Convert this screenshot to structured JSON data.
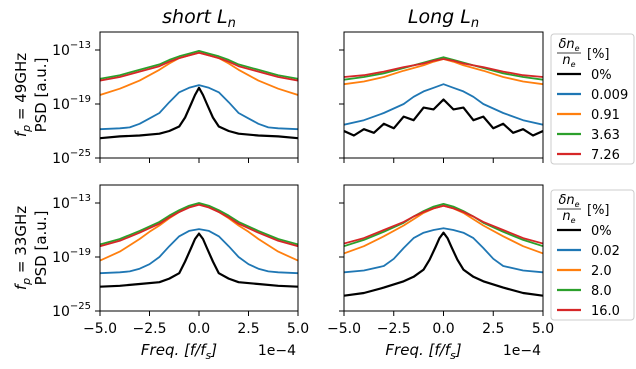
{
  "chart_data": [
    {
      "type": "line",
      "panel": "top-left",
      "title": "short L_n",
      "ylabel_line1": "f_p = 49GHz",
      "ylabel_line2": "PSD [a.u.]",
      "xlabel": "",
      "xlim": [
        -5.0,
        5.0
      ],
      "ylim": [
        -25,
        -11
      ],
      "y_scale": "log",
      "series": [
        {
          "name": "0%",
          "color": "#000000",
          "x": [
            -5.0,
            -4.0,
            -3.0,
            -2.0,
            -1.5,
            -1.0,
            -0.7,
            -0.4,
            -0.2,
            0.0,
            0.2,
            0.4,
            0.7,
            1.0,
            1.5,
            2.0,
            3.0,
            4.0,
            5.0
          ],
          "y": [
            -22.8,
            -22.6,
            -22.5,
            -22.3,
            -22.0,
            -21.5,
            -20.5,
            -19.0,
            -18.0,
            -17.2,
            -18.0,
            -19.0,
            -20.5,
            -21.5,
            -22.0,
            -22.3,
            -22.5,
            -22.6,
            -22.8
          ]
        },
        {
          "name": "0.009",
          "color": "#1f77b4",
          "x": [
            -5.0,
            -4.0,
            -3.5,
            -3.0,
            -2.5,
            -2.0,
            -1.5,
            -1.0,
            -0.5,
            0.0,
            0.5,
            1.0,
            1.5,
            2.0,
            2.5,
            3.0,
            3.5,
            4.0,
            5.0
          ],
          "y": [
            -21.8,
            -21.7,
            -21.6,
            -21.2,
            -20.6,
            -20.0,
            -18.8,
            -17.7,
            -17.2,
            -16.9,
            -17.2,
            -17.7,
            -18.8,
            -20.0,
            -20.6,
            -21.2,
            -21.6,
            -21.7,
            -21.8
          ]
        },
        {
          "name": "0.91",
          "color": "#ff7f0e",
          "x": [
            -5.0,
            -4.0,
            -3.0,
            -2.5,
            -2.0,
            -1.5,
            -1.0,
            -0.5,
            0.0,
            0.5,
            1.0,
            1.5,
            2.0,
            2.5,
            3.0,
            4.0,
            5.0
          ],
          "y": [
            -18.0,
            -17.3,
            -16.4,
            -15.8,
            -15.2,
            -14.5,
            -13.9,
            -13.6,
            -13.3,
            -13.6,
            -13.9,
            -14.5,
            -15.2,
            -15.8,
            -16.4,
            -17.3,
            -18.0
          ]
        },
        {
          "name": "3.63",
          "color": "#2ca02c",
          "x": [
            -5.0,
            -4.0,
            -3.0,
            -2.0,
            -1.5,
            -1.0,
            -0.5,
            0.0,
            0.5,
            1.0,
            1.5,
            2.0,
            3.0,
            4.0,
            5.0
          ],
          "y": [
            -16.2,
            -15.8,
            -15.2,
            -14.6,
            -14.1,
            -13.7,
            -13.4,
            -13.1,
            -13.4,
            -13.7,
            -14.1,
            -14.6,
            -15.2,
            -15.8,
            -16.2
          ]
        },
        {
          "name": "7.26",
          "color": "#d62728",
          "x": [
            -5.0,
            -4.0,
            -3.0,
            -2.0,
            -1.5,
            -1.0,
            -0.5,
            0.0,
            0.5,
            1.0,
            1.5,
            2.0,
            3.0,
            4.0,
            5.0
          ],
          "y": [
            -16.4,
            -16.0,
            -15.4,
            -14.8,
            -14.3,
            -13.9,
            -13.6,
            -13.3,
            -13.6,
            -13.9,
            -14.3,
            -14.8,
            -15.4,
            -16.0,
            -16.4
          ]
        }
      ]
    },
    {
      "type": "line",
      "panel": "top-right",
      "title": "Long L_n",
      "xlim": [
        -5.0,
        5.0
      ],
      "ylim": [
        -25,
        -11
      ],
      "y_scale": "log",
      "series": [
        {
          "name": "0%",
          "color": "#000000",
          "x": [
            -5.0,
            -4.5,
            -4.0,
            -3.5,
            -3.0,
            -2.5,
            -2.0,
            -1.5,
            -1.0,
            -0.5,
            0.0,
            0.5,
            1.0,
            1.5,
            2.0,
            2.5,
            3.0,
            3.5,
            4.0,
            4.5,
            5.0
          ],
          "y": [
            -22.0,
            -22.5,
            -21.8,
            -22.2,
            -21.2,
            -21.7,
            -20.4,
            -20.8,
            -19.4,
            -19.6,
            -18.5,
            -19.6,
            -19.4,
            -20.8,
            -20.4,
            -21.7,
            -21.2,
            -22.2,
            -21.8,
            -22.5,
            -22.0
          ]
        },
        {
          "name": "0.009",
          "color": "#1f77b4",
          "x": [
            -5.0,
            -4.0,
            -3.0,
            -2.0,
            -1.5,
            -1.0,
            -0.5,
            0.0,
            0.5,
            1.0,
            1.5,
            2.0,
            3.0,
            4.0,
            5.0
          ],
          "y": [
            -21.3,
            -20.8,
            -20.0,
            -19.0,
            -18.2,
            -17.6,
            -17.2,
            -16.8,
            -17.2,
            -17.6,
            -18.2,
            -19.0,
            -20.0,
            -20.8,
            -21.3
          ]
        },
        {
          "name": "0.91",
          "color": "#ff7f0e",
          "x": [
            -5.0,
            -4.0,
            -3.0,
            -2.0,
            -1.0,
            -0.5,
            0.0,
            0.5,
            1.0,
            2.0,
            3.0,
            4.0,
            5.0
          ],
          "y": [
            -16.8,
            -16.5,
            -16.0,
            -15.3,
            -14.7,
            -14.3,
            -14.0,
            -14.3,
            -14.7,
            -15.3,
            -16.0,
            -16.5,
            -16.8
          ]
        },
        {
          "name": "3.63",
          "color": "#2ca02c",
          "x": [
            -5.0,
            -4.0,
            -3.0,
            -2.0,
            -1.0,
            -0.5,
            0.0,
            0.5,
            1.0,
            2.0,
            3.0,
            4.0,
            5.0
          ],
          "y": [
            -16.3,
            -16.0,
            -15.6,
            -15.0,
            -14.4,
            -14.1,
            -13.8,
            -14.1,
            -14.4,
            -15.0,
            -15.6,
            -16.0,
            -16.3
          ]
        },
        {
          "name": "7.26",
          "color": "#d62728",
          "x": [
            -5.0,
            -4.0,
            -3.0,
            -2.0,
            -1.0,
            -0.5,
            0.0,
            0.5,
            1.0,
            2.0,
            3.0,
            4.0,
            5.0
          ],
          "y": [
            -16.0,
            -15.8,
            -15.4,
            -14.9,
            -14.5,
            -14.2,
            -14.0,
            -14.2,
            -14.5,
            -14.9,
            -15.4,
            -15.8,
            -16.0
          ]
        }
      ]
    },
    {
      "type": "line",
      "panel": "bottom-left",
      "ylabel_line1": "f_p = 33GHz",
      "ylabel_line2": "PSD [a.u.]",
      "xlabel": "Freq. [f/f_s]",
      "xlim": [
        -5.0,
        5.0
      ],
      "ylim": [
        -25,
        -11
      ],
      "y_scale": "log",
      "series": [
        {
          "name": "0%",
          "color": "#000000",
          "x": [
            -5.0,
            -4.0,
            -3.0,
            -2.0,
            -1.5,
            -1.0,
            -0.7,
            -0.4,
            -0.2,
            0.0,
            0.2,
            0.4,
            0.7,
            1.0,
            1.5,
            2.0,
            3.0,
            4.0,
            5.0
          ],
          "y": [
            -22.3,
            -22.2,
            -22.0,
            -21.8,
            -21.4,
            -20.8,
            -19.5,
            -18.0,
            -17.0,
            -16.4,
            -17.0,
            -18.0,
            -19.5,
            -20.8,
            -21.4,
            -21.8,
            -22.0,
            -22.2,
            -22.3
          ]
        },
        {
          "name": "0.02",
          "color": "#1f77b4",
          "x": [
            -5.0,
            -4.0,
            -3.5,
            -3.0,
            -2.5,
            -2.0,
            -1.5,
            -1.0,
            -0.5,
            0.0,
            0.5,
            1.0,
            1.5,
            2.0,
            2.5,
            3.0,
            3.5,
            4.0,
            5.0
          ],
          "y": [
            -20.8,
            -20.7,
            -20.6,
            -20.3,
            -19.8,
            -19.0,
            -17.8,
            -16.7,
            -16.1,
            -15.9,
            -16.1,
            -16.7,
            -17.8,
            -19.0,
            -19.8,
            -20.3,
            -20.6,
            -20.7,
            -20.8
          ]
        },
        {
          "name": "2.0",
          "color": "#ff7f0e",
          "x": [
            -5.0,
            -4.0,
            -3.0,
            -2.5,
            -2.0,
            -1.5,
            -1.0,
            -0.5,
            0.0,
            0.5,
            1.0,
            1.5,
            2.0,
            2.5,
            3.0,
            4.0,
            5.0
          ],
          "y": [
            -19.4,
            -18.4,
            -17.0,
            -16.2,
            -15.5,
            -14.7,
            -14.0,
            -13.4,
            -13.1,
            -13.4,
            -14.0,
            -14.7,
            -15.5,
            -16.2,
            -17.0,
            -18.4,
            -19.4
          ]
        },
        {
          "name": "8.0",
          "color": "#2ca02c",
          "x": [
            -5.0,
            -4.0,
            -3.0,
            -2.0,
            -1.5,
            -1.0,
            -0.5,
            0.0,
            0.5,
            1.0,
            1.5,
            2.0,
            3.0,
            4.0,
            5.0
          ],
          "y": [
            -17.6,
            -17.0,
            -16.1,
            -15.1,
            -14.4,
            -13.8,
            -13.3,
            -13.0,
            -13.3,
            -13.8,
            -14.4,
            -15.1,
            -16.1,
            -17.0,
            -17.6
          ]
        },
        {
          "name": "16.0",
          "color": "#d62728",
          "x": [
            -5.0,
            -4.0,
            -3.0,
            -2.0,
            -1.5,
            -1.0,
            -0.5,
            0.0,
            0.5,
            1.0,
            1.5,
            2.0,
            3.0,
            4.0,
            5.0
          ],
          "y": [
            -17.8,
            -17.2,
            -16.3,
            -15.3,
            -14.6,
            -14.0,
            -13.5,
            -13.2,
            -13.5,
            -14.0,
            -14.6,
            -15.3,
            -16.3,
            -17.2,
            -17.8
          ]
        }
      ]
    },
    {
      "type": "line",
      "panel": "bottom-right",
      "xlabel": "Freq. [f/f_s]",
      "xlim": [
        -5.0,
        5.0
      ],
      "ylim": [
        -25,
        -11
      ],
      "y_scale": "log",
      "series": [
        {
          "name": "0%",
          "color": "#000000",
          "x": [
            -5.0,
            -4.0,
            -3.0,
            -2.0,
            -1.5,
            -1.0,
            -0.7,
            -0.4,
            -0.2,
            0.0,
            0.2,
            0.4,
            0.7,
            1.0,
            1.5,
            2.0,
            3.0,
            4.0,
            5.0
          ],
          "y": [
            -23.3,
            -23.0,
            -22.4,
            -21.7,
            -21.2,
            -20.4,
            -19.3,
            -17.9,
            -16.9,
            -16.3,
            -16.9,
            -17.9,
            -19.3,
            -20.4,
            -21.2,
            -21.7,
            -22.4,
            -23.0,
            -23.3
          ]
        },
        {
          "name": "0.02",
          "color": "#1f77b4",
          "x": [
            -5.0,
            -4.0,
            -3.0,
            -2.5,
            -2.0,
            -1.5,
            -1.0,
            -0.5,
            0.0,
            0.5,
            1.0,
            1.5,
            2.0,
            2.5,
            3.0,
            4.0,
            5.0
          ],
          "y": [
            -20.7,
            -20.5,
            -20.0,
            -19.2,
            -18.0,
            -16.9,
            -16.3,
            -16.0,
            -15.8,
            -16.0,
            -16.3,
            -16.9,
            -18.0,
            -19.2,
            -20.0,
            -20.5,
            -20.7
          ]
        },
        {
          "name": "2.0",
          "color": "#ff7f0e",
          "x": [
            -5.0,
            -4.0,
            -3.0,
            -2.0,
            -1.5,
            -1.0,
            -0.5,
            0.0,
            0.5,
            1.0,
            1.5,
            2.0,
            3.0,
            4.0,
            5.0
          ],
          "y": [
            -18.6,
            -17.8,
            -16.7,
            -15.5,
            -14.8,
            -14.1,
            -13.6,
            -13.3,
            -13.6,
            -14.1,
            -14.8,
            -15.5,
            -16.7,
            -17.8,
            -18.6
          ]
        },
        {
          "name": "8.0",
          "color": "#2ca02c",
          "x": [
            -5.0,
            -4.0,
            -3.0,
            -2.0,
            -1.5,
            -1.0,
            -0.5,
            0.0,
            0.5,
            1.0,
            1.5,
            2.0,
            3.0,
            4.0,
            5.0
          ],
          "y": [
            -17.8,
            -17.1,
            -16.2,
            -15.2,
            -14.5,
            -13.9,
            -13.4,
            -13.1,
            -13.4,
            -13.9,
            -14.5,
            -15.2,
            -16.2,
            -17.1,
            -17.8
          ]
        },
        {
          "name": "16.0",
          "color": "#d62728",
          "x": [
            -5.0,
            -4.0,
            -3.0,
            -2.0,
            -1.5,
            -1.0,
            -0.5,
            0.0,
            0.5,
            1.0,
            1.5,
            2.0,
            3.0,
            4.0,
            5.0
          ],
          "y": [
            -17.5,
            -16.9,
            -16.0,
            -15.1,
            -14.5,
            -14.0,
            -13.6,
            -13.3,
            -13.6,
            -14.0,
            -14.5,
            -15.1,
            -16.0,
            -16.9,
            -17.5
          ]
        }
      ]
    }
  ],
  "figure": {
    "col_titles": [
      {
        "prefix": "short",
        "var": "L",
        "sub": "n"
      },
      {
        "prefix": "Long",
        "var": "L",
        "sub": "n"
      }
    ],
    "row_labels": [
      {
        "line1_var": "f",
        "line1_sub": "p",
        "line1_rest": " = 49GHz",
        "line2": "PSD [a.u.]"
      },
      {
        "line1_var": "f",
        "line1_sub": "p",
        "line1_rest": " = 33GHz",
        "line2": "PSD [a.u.]"
      }
    ],
    "ytick_labels": [
      "10",
      "10",
      "10"
    ],
    "ytick_exps": [
      "−13",
      "−19",
      "−25"
    ],
    "ytick_values": [
      -13,
      -19,
      -25
    ],
    "xtick_labels": [
      "−5.0",
      "−2.5",
      "0.0",
      "2.5",
      "5.0"
    ],
    "xtick_values": [
      -5.0,
      -2.5,
      0.0,
      2.5,
      5.0
    ],
    "xlabel": {
      "prefix": "Freq. [",
      "var": "f",
      "slash": "/",
      "var2": "f",
      "sub": "s",
      "suffix": "]"
    },
    "offset_text": "1e−4",
    "legends": [
      {
        "title_num": "δn",
        "title_num_sub": "e",
        "title_den": "n",
        "title_den_sub": "e",
        "title_unit": "[%]",
        "entries": [
          "0%",
          "0.009",
          "0.91",
          "3.63",
          "7.26"
        ]
      },
      {
        "title_num": "δn",
        "title_num_sub": "e",
        "title_den": "n",
        "title_den_sub": "e",
        "title_unit": "[%]",
        "entries": [
          "0%",
          "0.02",
          "2.0",
          "8.0",
          "16.0"
        ]
      }
    ],
    "colors": [
      "#000000",
      "#1f77b4",
      "#ff7f0e",
      "#2ca02c",
      "#d62728"
    ]
  }
}
